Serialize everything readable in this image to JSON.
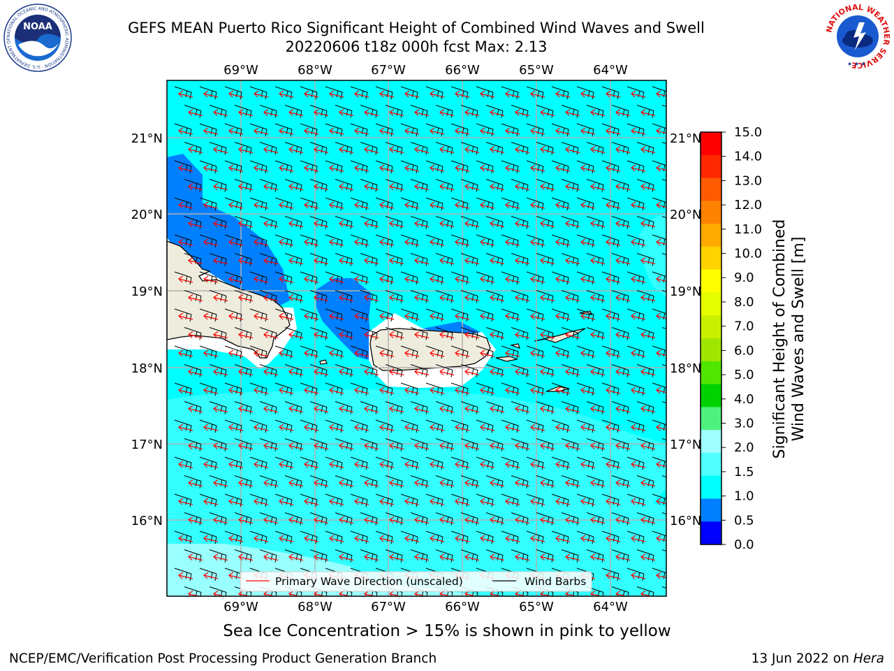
{
  "title": {
    "line1": "GEFS MEAN Puerto Rico Significant Height of Combined Wind Waves and Swell",
    "line2": "20220606 t18z 000h fcst   Max: 2.13"
  },
  "map": {
    "lon_ticks": [
      "69°W",
      "68°W",
      "67°W",
      "66°W",
      "65°W",
      "64°W"
    ],
    "lat_ticks": [
      "21°N",
      "20°N",
      "19°N",
      "18°N",
      "17°N",
      "16°N"
    ],
    "legend": {
      "wave_direction": "Primary Wave Direction (unscaled)",
      "wind_barbs": "Wind Barbs"
    },
    "colors": {
      "ocean_main": "#00ffff",
      "ocean_light": "#33ffff",
      "ocean_lighter": "#99ffff",
      "ocean_dark": "#0080ff",
      "land": "#eeecdc",
      "grid": "#b0b0b0",
      "wave_arrow": "#ff0000",
      "barb": "#000000"
    }
  },
  "colorbar": {
    "label_line1": "Significant Height of Combined",
    "label_line2": "Wind Waves and Swell [m]",
    "ticks": [
      "15.0",
      "14.0",
      "13.0",
      "12.0",
      "11.0",
      "10.0",
      "9.0",
      "8.0",
      "7.0",
      "6.0",
      "5.0",
      "4.0",
      "3.0",
      "2.0",
      "1.5",
      "1.0",
      "0.5",
      "0.0"
    ],
    "colors": [
      "#ff0000",
      "#ff2800",
      "#ff5a00",
      "#ff8200",
      "#ffaa00",
      "#ffd200",
      "#ffff00",
      "#e6ff00",
      "#c8f000",
      "#a0e600",
      "#50e600",
      "#00d200",
      "#50f080",
      "#a0ffff",
      "#50ffff",
      "#00ffff",
      "#0080ff",
      "#0000ff"
    ]
  },
  "logos": {
    "noaa_text": "NOAA",
    "noaa_ring": "NATIONAL OCEANIC AND ATMOSPHERIC ADMINISTRATION · U.S. DEPARTMENT OF COMMERCE",
    "nws_ring": "NATIONAL WEATHER SERVICE"
  },
  "footnote": "Sea Ice Concentration > 15% is shown in pink to yellow",
  "footer": {
    "left": "NCEP/EMC/Verification Post Processing Product Generation Branch",
    "right_date": "13 Jun 2022 on ",
    "right_host": "Hera"
  }
}
